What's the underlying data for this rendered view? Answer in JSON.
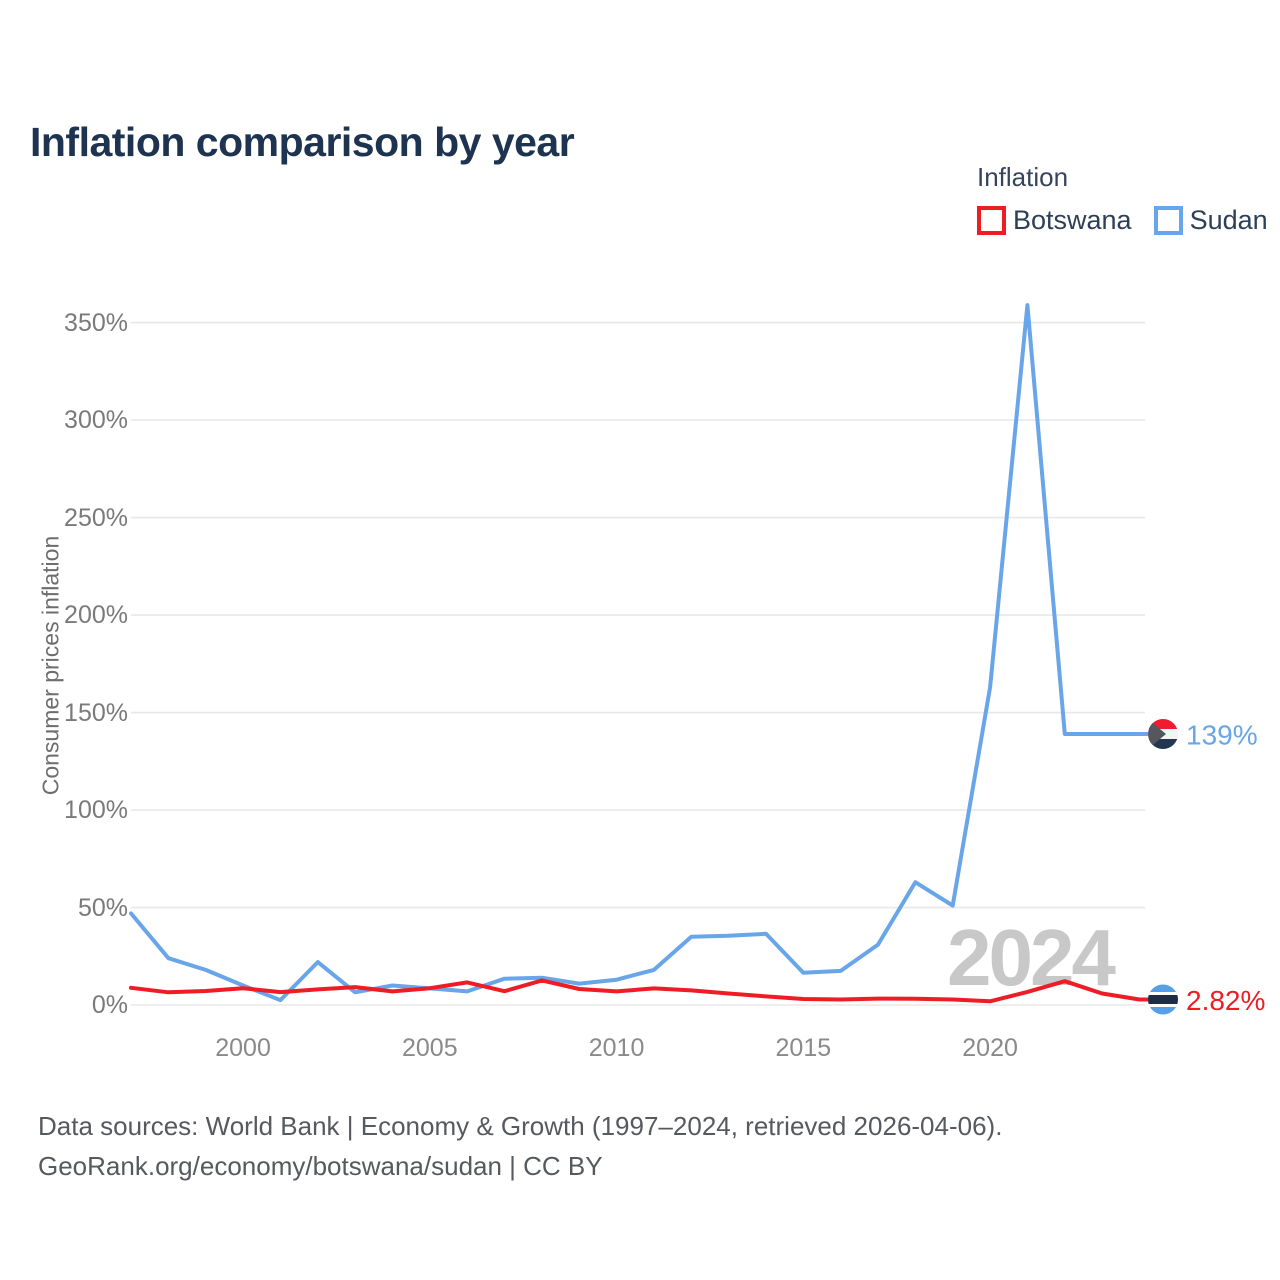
{
  "title": "Inflation comparison by year",
  "legend": {
    "title": "Inflation"
  },
  "chart_data": {
    "type": "line",
    "x": [
      1997,
      1998,
      1999,
      2000,
      2001,
      2002,
      2003,
      2004,
      2005,
      2006,
      2007,
      2008,
      2009,
      2010,
      2011,
      2012,
      2013,
      2014,
      2015,
      2016,
      2017,
      2018,
      2019,
      2020,
      2021,
      2022,
      2023,
      2024
    ],
    "series": [
      {
        "name": "Botswana",
        "color": "#ee1c24",
        "values": [
          8.8,
          6.5,
          7.2,
          8.6,
          6.6,
          8.0,
          9.2,
          7.0,
          8.6,
          11.6,
          7.1,
          12.6,
          8.2,
          7.0,
          8.5,
          7.5,
          5.9,
          4.4,
          3.1,
          2.8,
          3.3,
          3.2,
          2.8,
          1.9,
          6.7,
          12.2,
          5.9,
          2.82
        ],
        "end_label": "2.82%",
        "end_label_color": "#ee1c24",
        "flag": {
          "type": "botswana",
          "field": "#56a0e8",
          "band": "#1e2c44",
          "band_border": "#ffffff"
        }
      },
      {
        "name": "Sudan",
        "color": "#69a5e9",
        "values": [
          47,
          24,
          18,
          10,
          2.5,
          22,
          6.5,
          10,
          8.5,
          7,
          13.5,
          14,
          11,
          13,
          18,
          35,
          35.5,
          36.5,
          16.5,
          17.5,
          31,
          63,
          51,
          163,
          359,
          139,
          139,
          139
        ],
        "end_label": "139%",
        "end_label_color": "#69a5e9",
        "flag": {
          "type": "sudan",
          "stripes": [
            "#ee1c2e",
            "#f4f4f4",
            "#243650"
          ],
          "triangle": "#54585e"
        }
      }
    ],
    "ylabel": "Consumer prices inflation",
    "ylim": [
      0,
      370
    ],
    "yticks": [
      0,
      50,
      100,
      150,
      200,
      250,
      300,
      350
    ],
    "ytick_suffix": "%",
    "xticks": [
      2000,
      2005,
      2010,
      2015,
      2020
    ],
    "grid": "horizontal",
    "gridline_color": "#e8e8e8",
    "legend_position": "top-right",
    "watermark": "2024",
    "watermark_color": "#c8c8c8"
  },
  "footer": {
    "line1": "Data sources: World Bank | Economy & Growth (1997–2024, retrieved 2026-04-06).",
    "line2": "GeoRank.org/economy/botswana/sudan | CC BY"
  }
}
